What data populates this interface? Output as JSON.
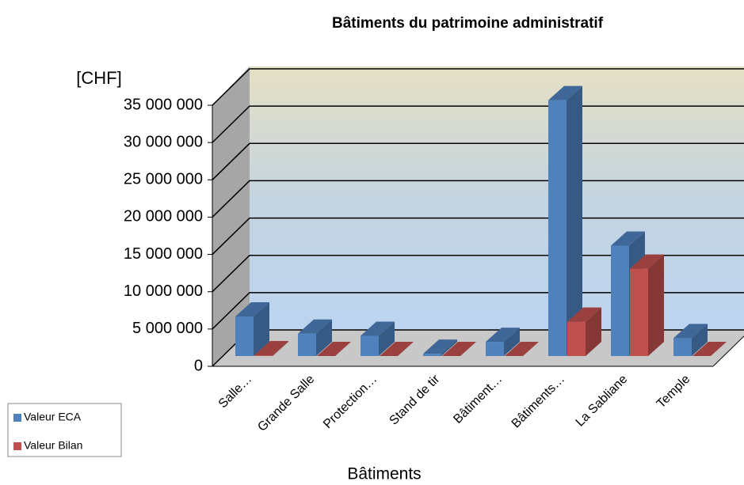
{
  "chart_data": {
    "type": "bar3d",
    "title": "Bâtiments du patrimoine administratif",
    "y_label": "[CHF]",
    "x_label": "Bâtiments",
    "categories": [
      "Salle…",
      "Grande Salle",
      "Protection…",
      "Stand de tir",
      "Bâtiment…",
      "Bâtiments…",
      "La Sabliane",
      "Temple"
    ],
    "series": [
      {
        "name": "Valeur ECA",
        "color": "#4f81bd",
        "values": [
          5300000,
          3000000,
          2700000,
          300000,
          1900000,
          34300000,
          14800000,
          2400000
        ]
      },
      {
        "name": "Valeur Bilan",
        "color": "#c0504d",
        "values": [
          100000,
          0,
          0,
          0,
          0,
          4600000,
          11700000,
          0
        ]
      }
    ],
    "ylim": [
      0,
      35000000
    ],
    "yticks": [
      {
        "value": 0,
        "label": "0"
      },
      {
        "value": 5000000,
        "label": "5 000 000"
      },
      {
        "value": 10000000,
        "label": "10 000 000"
      },
      {
        "value": 15000000,
        "label": "15 000 000"
      },
      {
        "value": 20000000,
        "label": "20 000 000"
      },
      {
        "value": 25000000,
        "label": "25 000 000"
      },
      {
        "value": 30000000,
        "label": "30 000 000"
      },
      {
        "value": 35000000,
        "label": "35 000 000"
      }
    ],
    "grid": true,
    "legend": "bottom-left"
  }
}
